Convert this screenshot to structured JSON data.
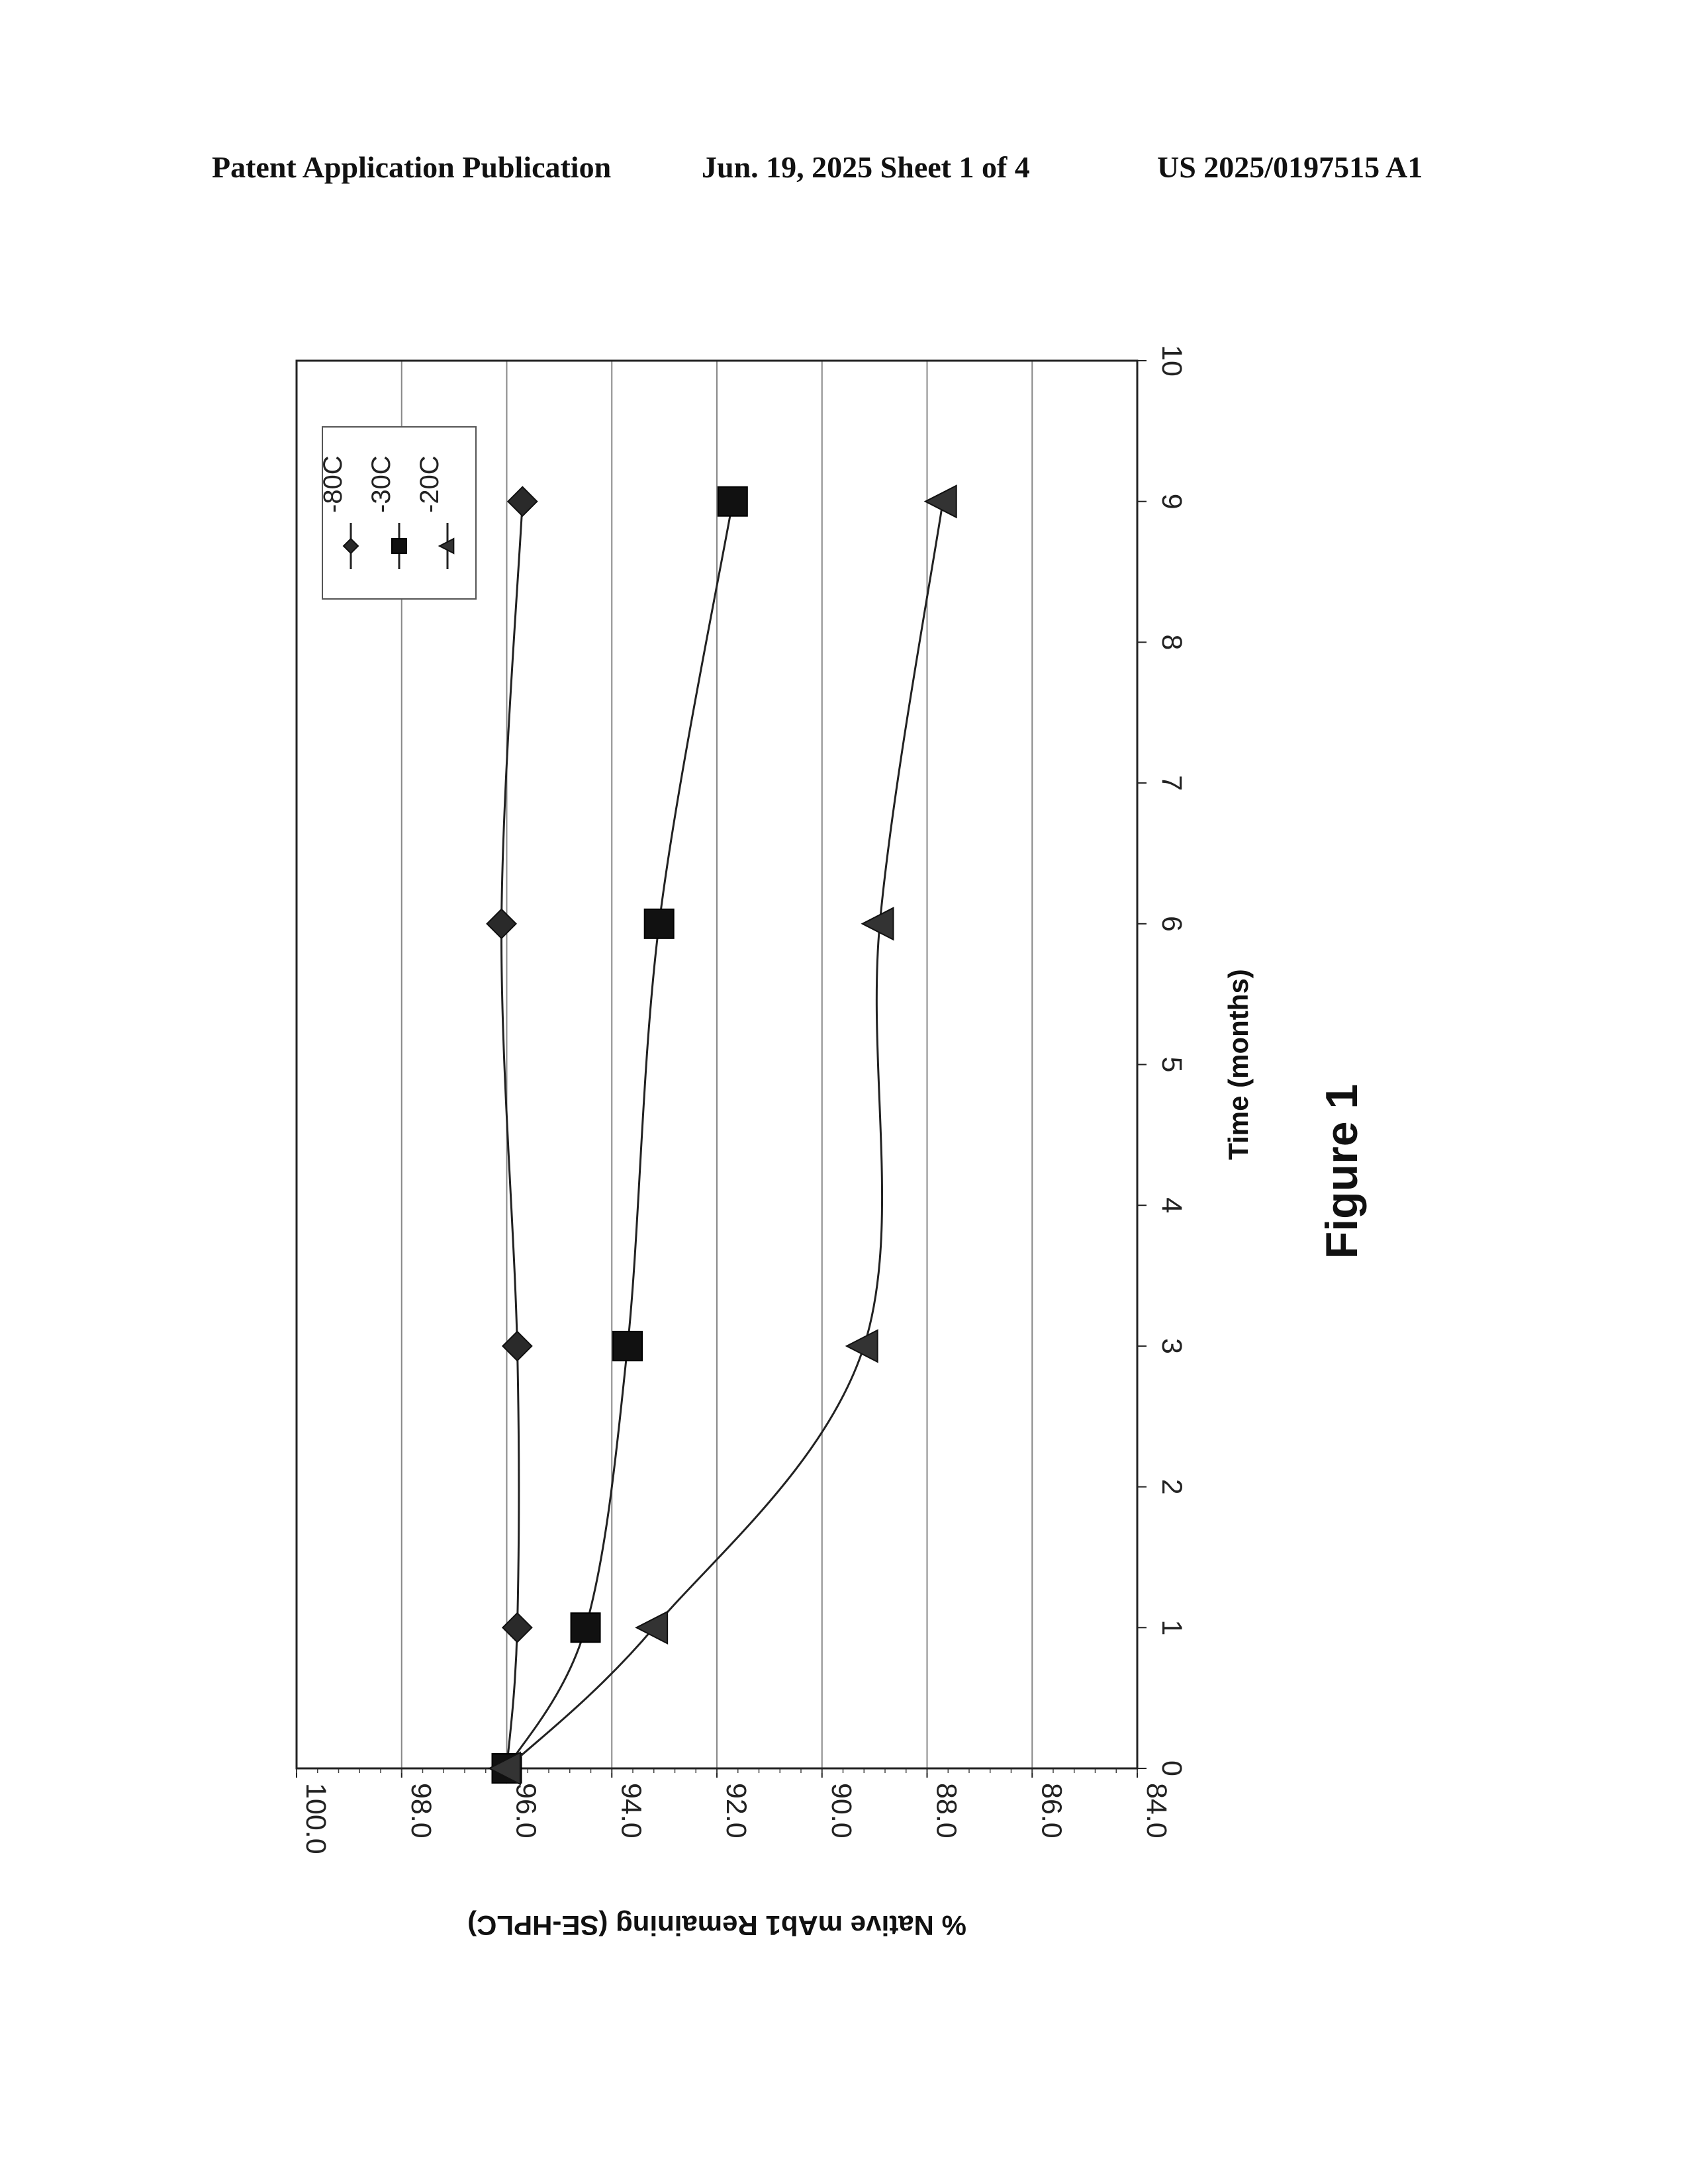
{
  "header": {
    "publication": "Patent Application Publication",
    "date_sheet": "Jun. 19, 2025  Sheet 1 of 4",
    "number": "US 2025/0197515 A1"
  },
  "figure_caption": "Figure 1",
  "chart_data": {
    "type": "line",
    "title": "",
    "xlabel": "Time (months)",
    "ylabel": "% Native mAb1 Remaining (SE-HPLC)",
    "xlim": [
      0,
      10
    ],
    "ylim": [
      84.0,
      100.0
    ],
    "x_ticks": [
      "0",
      "1",
      "2",
      "3",
      "4",
      "5",
      "6",
      "7",
      "8",
      "9",
      "10"
    ],
    "y_ticks": [
      "84.0",
      "86.0",
      "88.0",
      "90.0",
      "92.0",
      "94.0",
      "96.0",
      "98.0",
      "100.0"
    ],
    "grid": "horizontal",
    "orientation": "rotated 90 degrees clockwise on the page",
    "legend_position": "top-left",
    "series": [
      {
        "name": "-80C",
        "marker": "diamond",
        "x": [
          0,
          1,
          3,
          6,
          9
        ],
        "values": [
          96.0,
          95.8,
          95.8,
          96.1,
          95.7
        ]
      },
      {
        "name": "-30C",
        "marker": "square",
        "x": [
          0,
          1,
          3,
          6,
          9
        ],
        "values": [
          96.0,
          94.5,
          93.7,
          93.1,
          91.7
        ]
      },
      {
        "name": "-20C",
        "marker": "triangle",
        "x": [
          0,
          1,
          3,
          6,
          9
        ],
        "values": [
          96.0,
          93.2,
          89.2,
          88.9,
          87.7
        ]
      }
    ]
  }
}
